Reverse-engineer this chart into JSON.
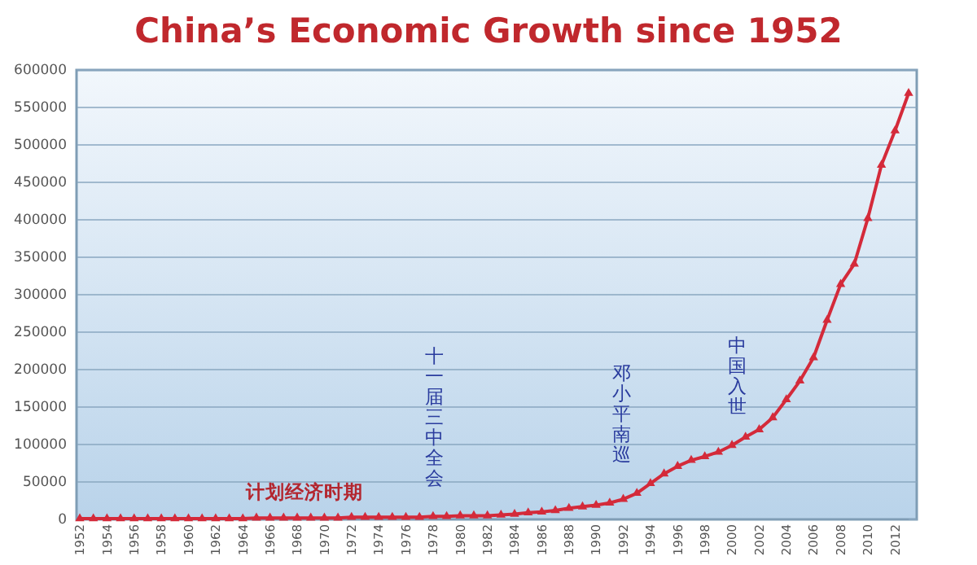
{
  "chart_data": {
    "type": "line",
    "title": "China’s Economic Growth since 1952",
    "categories": [
      "1952",
      null,
      "1954",
      null,
      "1956",
      null,
      "1958",
      null,
      "1960",
      null,
      "1962",
      null,
      "1964",
      null,
      "1966",
      null,
      "1968",
      null,
      "1970",
      null,
      "1972",
      null,
      "1974",
      null,
      "1976",
      null,
      "1978",
      null,
      "1980",
      null,
      "1982",
      null,
      "1984",
      null,
      "1986",
      null,
      "1988",
      null,
      "1990",
      null,
      "1992",
      null,
      "1994",
      null,
      "1996",
      null,
      "1998",
      null,
      "2000",
      null,
      "2002",
      null,
      "2004",
      null,
      "2006",
      null,
      "2008",
      null,
      "2010",
      null,
      "2012",
      null
    ],
    "series": [
      {
        "color": "#d42a3a",
        "values": [
          1000,
          1000,
          1000,
          1000,
          1000,
          1000,
          1000,
          1000,
          1000,
          1000,
          1000,
          1000,
          1000,
          2000,
          2000,
          2000,
          2000,
          2000,
          2000,
          2000,
          3000,
          3000,
          3000,
          3000,
          3000,
          3000,
          4000,
          4000,
          5000,
          5000,
          5000,
          6000,
          7000,
          9000,
          10000,
          12000,
          15000,
          17000,
          19000,
          22000,
          27000,
          35000,
          48000,
          61000,
          71000,
          79000,
          84000,
          90000,
          99000,
          110000,
          120000,
          136000,
          160000,
          185000,
          216000,
          266000,
          314000,
          341000,
          402000,
          473000,
          519000,
          569000
        ]
      }
    ],
    "ylim": [
      0,
      600000
    ],
    "yticks": [
      0,
      50000,
      100000,
      150000,
      200000,
      250000,
      300000,
      350000,
      400000,
      450000,
      500000,
      550000,
      600000
    ],
    "grid": "y",
    "marker": "triangle",
    "line_style": "solid",
    "annotations": [
      "计划经济时期",
      "十一届三中全会",
      "邓小平南巡",
      "中国入世"
    ]
  }
}
